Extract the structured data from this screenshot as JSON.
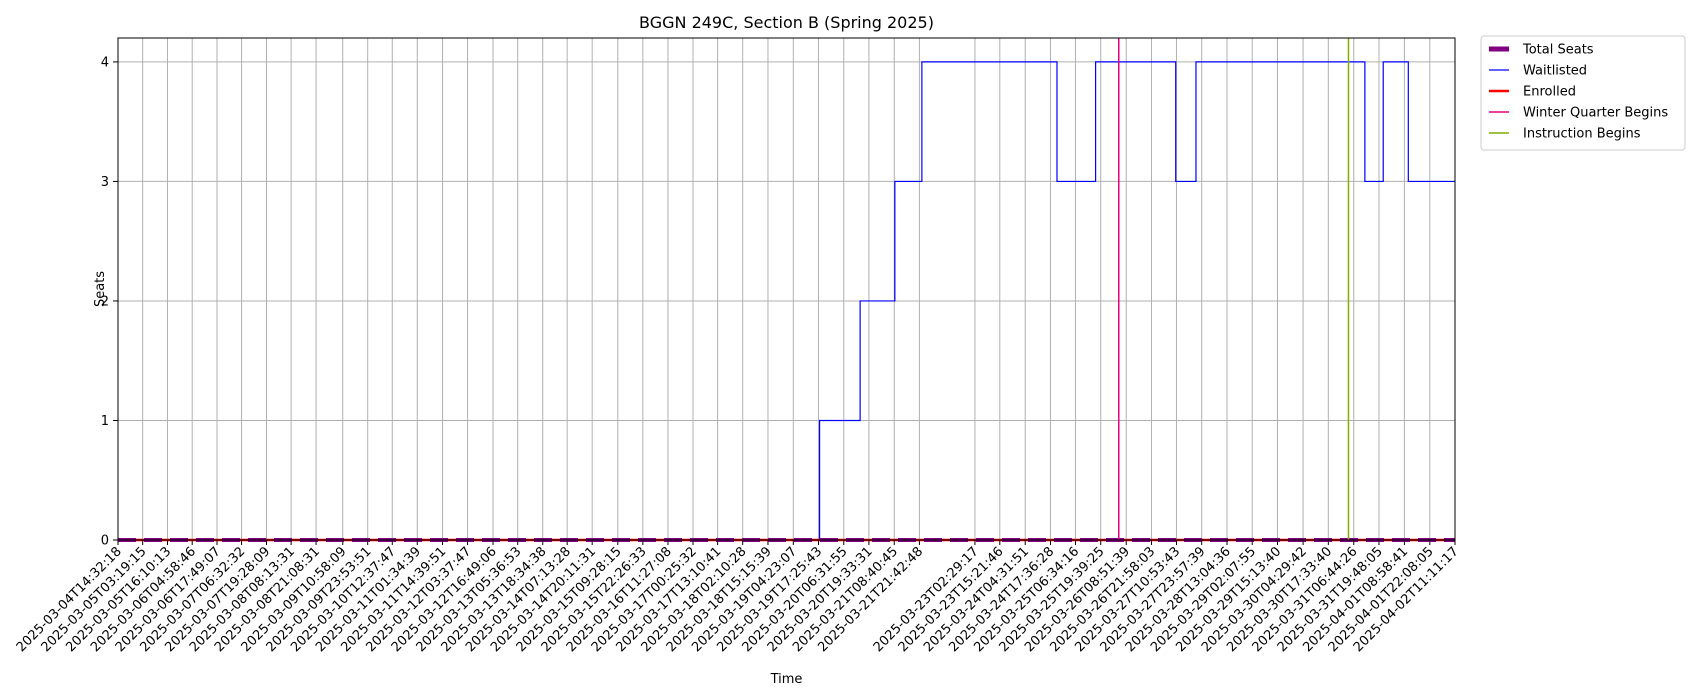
{
  "chart_data": {
    "type": "line",
    "title": "BGGN 249C, Section B (Spring 2025)",
    "xlabel": "Time",
    "ylabel": "Seats",
    "ylim": [
      0,
      4.2
    ],
    "yticks": [
      0,
      1,
      2,
      3,
      4
    ],
    "grid": true,
    "legend_placement": "outside-right-top",
    "x_ticks": [
      "2025-03-04T14:32:18",
      "2025-03-05T03:19:15",
      "2025-03-05T16:10:13",
      "2025-03-06T04:58:46",
      "2025-03-06T17:49:07",
      "2025-03-07T06:32:32",
      "2025-03-07T19:28:09",
      "2025-03-08T08:13:31",
      "2025-03-08T21:08:31",
      "2025-03-09T10:58:09",
      "2025-03-09T23:53:51",
      "2025-03-10T12:37:47",
      "2025-03-11T01:34:39",
      "2025-03-11T14:39:51",
      "2025-03-12T03:37:47",
      "2025-03-12T16:49:06",
      "2025-03-13T05:36:53",
      "2025-03-13T18:34:38",
      "2025-03-14T07:13:28",
      "2025-03-14T20:11:31",
      "2025-03-15T09:28:15",
      "2025-03-15T22:26:33",
      "2025-03-16T11:27:08",
      "2025-03-17T00:25:32",
      "2025-03-17T13:10:41",
      "2025-03-18T02:10:28",
      "2025-03-18T15:15:39",
      "2025-03-19T04:23:07",
      "2025-03-19T17:25:43",
      "2025-03-20T06:31:55",
      "2025-03-20T19:33:31",
      "2025-03-21T08:40:45",
      "2025-03-21T21:42:48",
      "2025-03-23T02:29:17",
      "2025-03-23T15:21:46",
      "2025-03-24T04:31:51",
      "2025-03-24T17:36:28",
      "2025-03-25T06:34:16",
      "2025-03-25T19:39:25",
      "2025-03-26T08:51:39",
      "2025-03-26T21:58:03",
      "2025-03-27T10:53:43",
      "2025-03-27T23:57:39",
      "2025-03-28T13:04:36",
      "2025-03-29T02:07:55",
      "2025-03-29T15:13:40",
      "2025-03-30T04:29:42",
      "2025-03-30T17:33:40",
      "2025-03-31T06:44:26",
      "2025-03-31T19:48:05",
      "2025-04-01T08:58:41",
      "2025-04-01T22:08:05",
      "2025-04-02T11:11:17"
    ],
    "series": [
      {
        "name": "Total Seats",
        "color": "#800080",
        "style": "dashed-thick",
        "points": [
          [
            "2025-03-04T14:32:18",
            0
          ],
          [
            "2025-04-02T11:11:17",
            0
          ]
        ]
      },
      {
        "name": "Waitlisted",
        "color": "#0000ff",
        "style": "step",
        "points": [
          [
            "2025-03-04T14:32:18",
            0
          ],
          [
            "2025-03-19T18:00:00",
            0
          ],
          [
            "2025-03-19T18:00:00",
            1
          ],
          [
            "2025-03-20T15:00:00",
            1
          ],
          [
            "2025-03-20T15:00:00",
            2
          ],
          [
            "2025-03-21T09:00:00",
            2
          ],
          [
            "2025-03-21T09:00:00",
            3
          ],
          [
            "2025-03-21T23:00:00",
            3
          ],
          [
            "2025-03-21T23:00:00",
            4
          ],
          [
            "2025-03-24T21:00:00",
            4
          ],
          [
            "2025-03-24T21:00:00",
            3
          ],
          [
            "2025-03-25T17:00:00",
            3
          ],
          [
            "2025-03-25T17:00:00",
            4
          ],
          [
            "2025-03-27T10:30:00",
            4
          ],
          [
            "2025-03-27T10:30:00",
            3
          ],
          [
            "2025-03-27T21:00:00",
            3
          ],
          [
            "2025-03-27T21:00:00",
            4
          ],
          [
            "2025-03-31T12:30:00",
            4
          ],
          [
            "2025-03-31T12:30:00",
            3
          ],
          [
            "2025-03-31T22:00:00",
            3
          ],
          [
            "2025-03-31T22:00:00",
            4
          ],
          [
            "2025-04-01T11:00:00",
            4
          ],
          [
            "2025-04-01T11:00:00",
            3
          ],
          [
            "2025-04-02T11:11:17",
            3
          ]
        ]
      },
      {
        "name": "Enrolled",
        "color": "#ff0000",
        "style": "solid-thick",
        "points": [
          [
            "2025-03-04T14:32:18",
            0
          ],
          [
            "2025-04-02T11:11:17",
            0
          ]
        ]
      }
    ],
    "vlines": [
      {
        "name": "Winter Quarter Begins",
        "color": "#e6007e",
        "x": "2025-03-26T05:00:00"
      },
      {
        "name": "Instruction Begins",
        "color": "#7fae00",
        "x": "2025-03-31T04:00:00"
      }
    ]
  }
}
